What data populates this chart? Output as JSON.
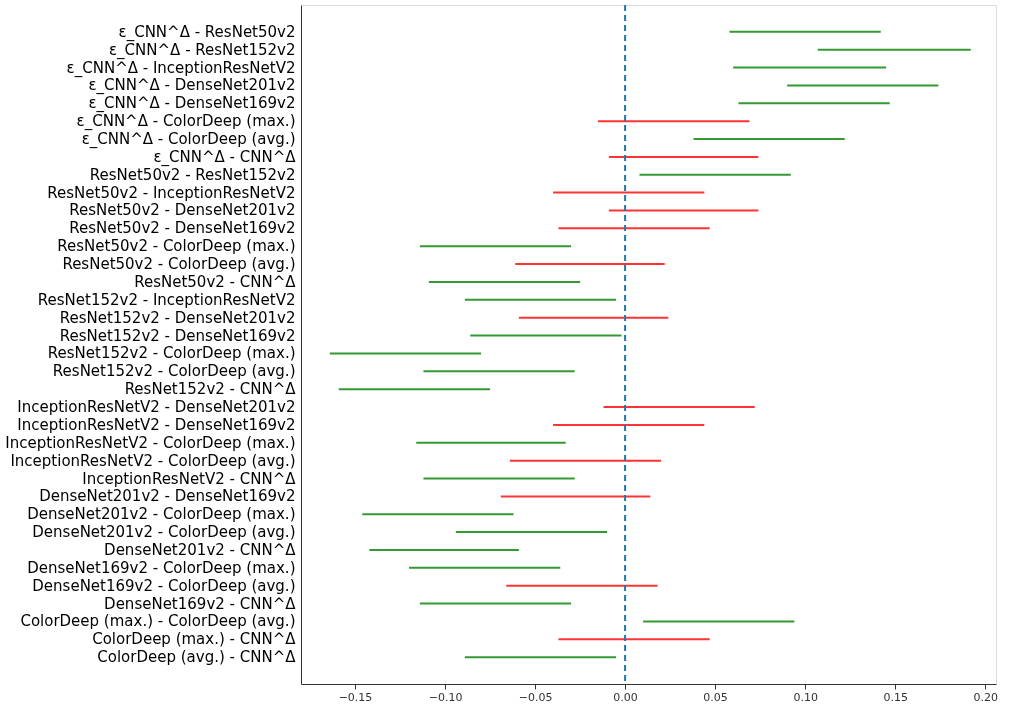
{
  "chart_data": {
    "type": "bar",
    "orientation": "horizontal",
    "categories": [
      "ε_CNN^Δ - ResNet50v2",
      "ε_CNN^Δ - ResNet152v2",
      "ε_CNN^Δ - InceptionResNetV2",
      "ε_CNN^Δ - DenseNet201v2",
      "ε_CNN^Δ - DenseNet169v2",
      "ε_CNN^Δ - ColorDeep (max.)",
      "ε_CNN^Δ - ColorDeep (avg.)",
      "ε_CNN^Δ - CNN^Δ",
      "ResNet50v2 - ResNet152v2",
      "ResNet50v2 - InceptionResNetV2",
      "ResNet50v2 - DenseNet201v2",
      "ResNet50v2 - DenseNet169v2",
      "ResNet50v2 - ColorDeep (max.)",
      "ResNet50v2 - ColorDeep (avg.)",
      "ResNet50v2 - CNN^Δ",
      "ResNet152v2 - InceptionResNetV2",
      "ResNet152v2 - DenseNet201v2",
      "ResNet152v2 - DenseNet169v2",
      "ResNet152v2 - ColorDeep (max.)",
      "ResNet152v2 - ColorDeep (avg.)",
      "ResNet152v2 - CNN^Δ",
      "InceptionResNetV2 - DenseNet201v2",
      "InceptionResNetV2 - DenseNet169v2",
      "InceptionResNetV2 - ColorDeep (max.)",
      "InceptionResNetV2 - ColorDeep (avg.)",
      "InceptionResNetV2 - CNN^Δ",
      "DenseNet201v2 - DenseNet169v2",
      "DenseNet201v2 - ColorDeep (max.)",
      "DenseNet201v2 - ColorDeep (avg.)",
      "DenseNet201v2 - CNN^Δ",
      "DenseNet169v2 - ColorDeep (max.)",
      "DenseNet169v2 - ColorDeep (avg.)",
      "DenseNet169v2 - CNN^Δ",
      "ColorDeep (max.) - ColorDeep (avg.)",
      "ColorDeep (max.) - CNN^Δ",
      "ColorDeep (avg.) - CNN^Δ"
    ],
    "base": [
      0.058,
      0.107,
      0.06,
      0.09,
      0.063,
      -0.015,
      0.038,
      -0.009,
      0.008,
      -0.04,
      -0.009,
      -0.037,
      -0.114,
      -0.061,
      -0.109,
      -0.089,
      -0.059,
      -0.086,
      -0.164,
      -0.112,
      -0.159,
      -0.012,
      -0.04,
      -0.116,
      -0.064,
      -0.112,
      -0.069,
      -0.146,
      -0.094,
      -0.142,
      -0.12,
      -0.066,
      -0.114,
      0.01,
      -0.037,
      -0.089
    ],
    "values": [
      0.084,
      0.085,
      0.085,
      0.084,
      0.084,
      0.084,
      0.084,
      0.083,
      0.084,
      0.084,
      0.083,
      0.084,
      0.084,
      0.083,
      0.084,
      0.084,
      0.083,
      0.084,
      0.084,
      0.084,
      0.084,
      0.084,
      0.084,
      0.083,
      0.084,
      0.084,
      0.083,
      0.084,
      0.084,
      0.083,
      0.084,
      0.084,
      0.084,
      0.084,
      0.084,
      0.084
    ],
    "colors": [
      "#339933",
      "#339933",
      "#339933",
      "#339933",
      "#339933",
      "#ff3333",
      "#339933",
      "#ff3333",
      "#339933",
      "#ff3333",
      "#ff3333",
      "#ff3333",
      "#339933",
      "#ff3333",
      "#339933",
      "#339933",
      "#ff3333",
      "#339933",
      "#339933",
      "#339933",
      "#339933",
      "#ff3333",
      "#ff3333",
      "#339933",
      "#ff3333",
      "#339933",
      "#ff3333",
      "#339933",
      "#339933",
      "#339933",
      "#339933",
      "#ff3333",
      "#339933",
      "#339933",
      "#ff3333",
      "#339933"
    ],
    "xlim": [
      -0.18,
      0.206
    ],
    "xticks": [
      {
        "value": -0.15,
        "label": "−0.15"
      },
      {
        "value": -0.1,
        "label": "−0.10"
      },
      {
        "value": -0.05,
        "label": "−0.05"
      },
      {
        "value": 0,
        "label": "0.00"
      },
      {
        "value": 0.05,
        "label": "0.05"
      },
      {
        "value": 0.1,
        "label": "0.10"
      },
      {
        "value": 0.15,
        "label": "0.15"
      },
      {
        "value": 0.2,
        "label": "0.20"
      }
    ],
    "ref_lines": [
      {
        "axis": "x",
        "value": 0,
        "color": "#1f77b4",
        "line_style": "dashed"
      }
    ],
    "grid": false
  }
}
